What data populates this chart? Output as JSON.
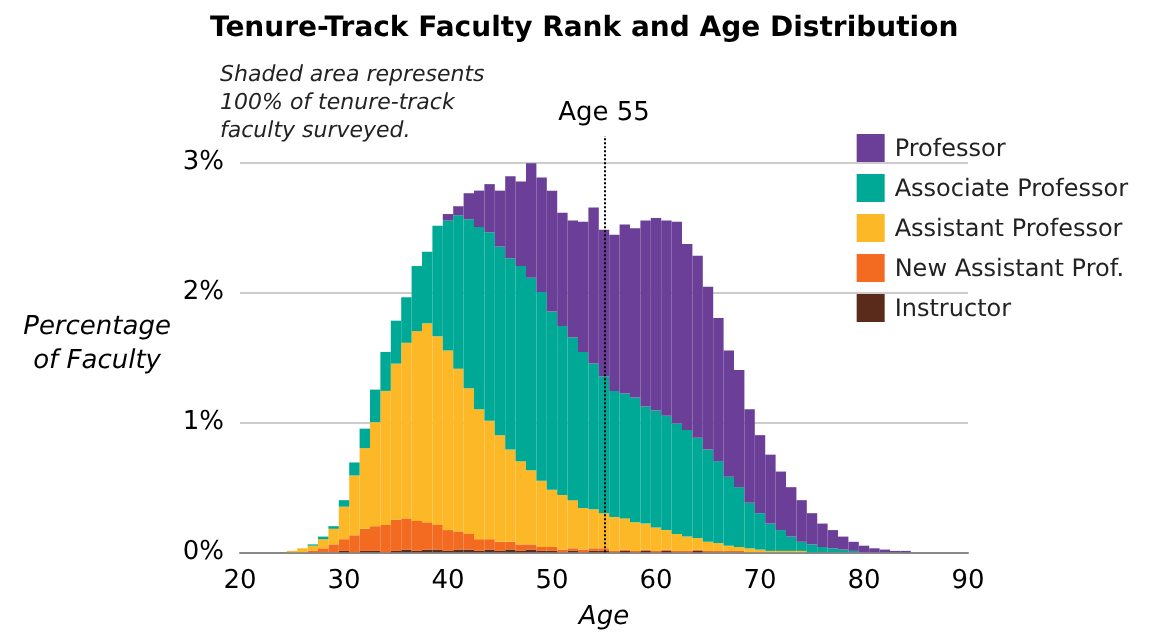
{
  "chart_data": {
    "type": "bar",
    "title": "Tenure-Track Faculty Rank and Age Distribution",
    "xlabel": "Age",
    "ylabel": "Percentage\nof Faculty",
    "annotations": [
      "Shaded area represents\n100% of tenure-track\nfaculty surveyed."
    ],
    "x": [
      25,
      26,
      27,
      28,
      29,
      30,
      31,
      32,
      33,
      34,
      35,
      36,
      37,
      38,
      39,
      40,
      41,
      42,
      43,
      44,
      45,
      46,
      47,
      48,
      49,
      50,
      51,
      52,
      53,
      54,
      55,
      56,
      57,
      58,
      59,
      60,
      61,
      62,
      63,
      64,
      65,
      66,
      67,
      68,
      69,
      70,
      71,
      72,
      73,
      74,
      75,
      76,
      77,
      78,
      79,
      80,
      81,
      82,
      83,
      84
    ],
    "stacked": true,
    "series": [
      {
        "name": "Instructor",
        "color": "#5a2a1a",
        "values": [
          0,
          0,
          0,
          0,
          0,
          0.01,
          0,
          0.01,
          0.01,
          0,
          0.01,
          0.02,
          0.01,
          0.02,
          0.02,
          0.01,
          0.02,
          0.02,
          0.01,
          0.02,
          0.01,
          0.02,
          0.01,
          0.02,
          0.01,
          0.01,
          0,
          0.01,
          0,
          0.01,
          0.01,
          0,
          0.01,
          0,
          0.01,
          0,
          0.01,
          0,
          0,
          0.01,
          0,
          0,
          0,
          0,
          0,
          0,
          0,
          0,
          0,
          0,
          0,
          0,
          0,
          0,
          0,
          0,
          0,
          0,
          0,
          0
        ]
      },
      {
        "name": "New Assistant Prof.",
        "color": "#f26b21",
        "values": [
          0,
          0,
          0.01,
          0.03,
          0.06,
          0.09,
          0.13,
          0.17,
          0.19,
          0.21,
          0.24,
          0.24,
          0.23,
          0.21,
          0.19,
          0.16,
          0.14,
          0.12,
          0.09,
          0.08,
          0.07,
          0.06,
          0.05,
          0.04,
          0.03,
          0.03,
          0.02,
          0.02,
          0.02,
          0.02,
          0.02,
          0.01,
          0.01,
          0.01,
          0.01,
          0.01,
          0.01,
          0.01,
          0.01,
          0.01,
          0.01,
          0.01,
          0.01,
          0.01,
          0,
          0,
          0,
          0,
          0,
          0,
          0,
          0,
          0,
          0,
          0,
          0,
          0,
          0,
          0,
          0
        ]
      },
      {
        "name": "Assistant Professor",
        "color": "#fdb827",
        "values": [
          0.01,
          0.03,
          0.04,
          0.07,
          0.12,
          0.25,
          0.46,
          0.62,
          0.8,
          1.03,
          1.2,
          1.35,
          1.46,
          1.53,
          1.45,
          1.38,
          1.25,
          1.12,
          1.0,
          0.91,
          0.82,
          0.71,
          0.64,
          0.57,
          0.51,
          0.44,
          0.42,
          0.37,
          0.32,
          0.3,
          0.27,
          0.26,
          0.24,
          0.22,
          0.2,
          0.18,
          0.15,
          0.13,
          0.11,
          0.09,
          0.07,
          0.06,
          0.04,
          0.03,
          0.03,
          0.02,
          0.01,
          0.01,
          0.01,
          0.01,
          0,
          0,
          0,
          0,
          0,
          0,
          0,
          0,
          0,
          0
        ]
      },
      {
        "name": "Associate Professor",
        "color": "#00a896",
        "values": [
          0,
          0,
          0.01,
          0.02,
          0.02,
          0.05,
          0.1,
          0.15,
          0.25,
          0.3,
          0.33,
          0.35,
          0.5,
          0.55,
          0.85,
          1.0,
          1.18,
          1.3,
          1.4,
          1.45,
          1.45,
          1.47,
          1.5,
          1.48,
          1.45,
          1.37,
          1.3,
          1.25,
          1.2,
          1.12,
          1.05,
          0.97,
          0.96,
          0.96,
          0.9,
          0.9,
          0.88,
          0.85,
          0.82,
          0.77,
          0.71,
          0.63,
          0.53,
          0.46,
          0.35,
          0.28,
          0.21,
          0.16,
          0.11,
          0.07,
          0.06,
          0.04,
          0.03,
          0.02,
          0.01,
          0,
          0,
          0,
          0,
          0
        ]
      },
      {
        "name": "Professor",
        "color": "#6b3f98",
        "values": [
          0,
          0,
          0,
          0,
          0,
          0,
          0,
          0,
          0,
          0,
          0,
          0,
          0,
          0,
          0,
          0.05,
          0.07,
          0.2,
          0.28,
          0.37,
          0.43,
          0.63,
          0.65,
          0.88,
          0.88,
          0.93,
          0.87,
          0.9,
          1.0,
          1.2,
          1.13,
          1.2,
          1.3,
          1.3,
          1.43,
          1.48,
          1.5,
          1.55,
          1.43,
          1.4,
          1.25,
          1.1,
          0.97,
          0.9,
          0.72,
          0.6,
          0.53,
          0.45,
          0.38,
          0.32,
          0.24,
          0.18,
          0.14,
          0.1,
          0.07,
          0.05,
          0.03,
          0.02,
          0.01,
          0.01
        ]
      }
    ],
    "xlim": [
      20,
      90
    ],
    "xticks": [
      20,
      30,
      40,
      50,
      60,
      70,
      80,
      90
    ],
    "ylim": [
      0,
      3.2
    ],
    "yticks": [
      {
        "value": 0,
        "label": "0%"
      },
      {
        "value": 1,
        "label": "1%"
      },
      {
        "value": 2,
        "label": "2%"
      },
      {
        "value": 3,
        "label": "3%"
      }
    ],
    "ref_lines": [
      {
        "axis": "x",
        "value": 55,
        "label": "Age 55",
        "color": "#000000",
        "line_style": "dotted"
      }
    ],
    "grid": "y",
    "legend": "top right"
  }
}
